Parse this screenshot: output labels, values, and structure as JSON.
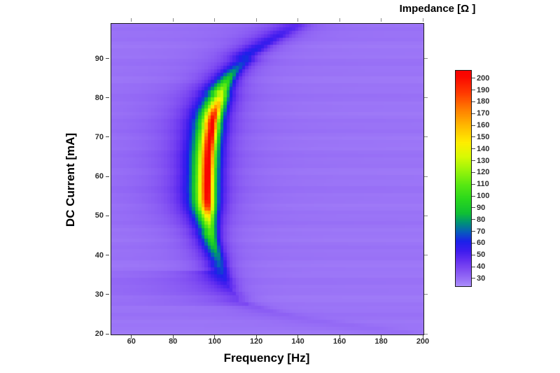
{
  "title": "Impedance [Ω ]",
  "x_axis": {
    "label": "Frequency [Hz]",
    "range": [
      50,
      200
    ],
    "ticks": [
      60,
      80,
      100,
      120,
      140,
      160,
      180,
      200
    ]
  },
  "y_axis": {
    "label": "DC Current [mA]",
    "range": [
      20,
      99
    ],
    "ticks": [
      20,
      30,
      40,
      50,
      60,
      70,
      80,
      90
    ]
  },
  "colorbar": {
    "range": [
      24,
      207
    ],
    "ticks": [
      30,
      40,
      50,
      60,
      70,
      80,
      90,
      100,
      110,
      120,
      130,
      140,
      150,
      160,
      170,
      180,
      190,
      200
    ]
  },
  "chart_data": {
    "type": "heatmap",
    "title": "Impedance [Ω ]",
    "xlabel": "Frequency [Hz]",
    "ylabel": "DC Current [mA]",
    "x_range": [
      50,
      200
    ],
    "y_range": [
      20,
      99
    ],
    "z_label": "Impedance [Ω]",
    "z_range": [
      24,
      207
    ],
    "grid": {
      "cols": 100,
      "rows": 88
    },
    "baseline_impedance": 29,
    "row_noise_amp": 1.1,
    "legend_position": "right-colorbar",
    "colormap_stops": [
      [
        24,
        [
          172,
          142,
          250
        ]
      ],
      [
        30,
        [
          152,
          112,
          246
        ]
      ],
      [
        38,
        [
          128,
          78,
          242
        ]
      ],
      [
        46,
        [
          100,
          48,
          240
        ]
      ],
      [
        54,
        [
          62,
          28,
          238
        ]
      ],
      [
        62,
        [
          28,
          32,
          234
        ]
      ],
      [
        70,
        [
          8,
          92,
          188
        ]
      ],
      [
        78,
        [
          0,
          146,
          118
        ]
      ],
      [
        86,
        [
          16,
          192,
          52
        ]
      ],
      [
        98,
        [
          42,
          216,
          28
        ]
      ],
      [
        110,
        [
          88,
          232,
          18
        ]
      ],
      [
        122,
        [
          152,
          244,
          10
        ]
      ],
      [
        134,
        [
          216,
          250,
          4
        ]
      ],
      [
        146,
        [
          255,
          238,
          0
        ]
      ],
      [
        160,
        [
          255,
          186,
          0
        ]
      ],
      [
        174,
        [
          255,
          126,
          0
        ]
      ],
      [
        188,
        [
          255,
          58,
          0
        ]
      ],
      [
        202,
        [
          250,
          8,
          0
        ]
      ],
      [
        212,
        [
          246,
          0,
          0
        ]
      ]
    ],
    "rows_format": [
      "dc_current_mA",
      "resonance_freq_hz",
      "peak_impedance_ohm",
      "halfwidth_hz",
      "left_shoulder_ohm"
    ],
    "resonance_rows": [
      [
        20,
        190,
        30.5,
        9
      ],
      [
        21,
        176,
        31,
        9
      ],
      [
        22,
        164,
        31.5,
        9
      ],
      [
        23,
        152,
        32,
        8
      ],
      [
        24,
        141,
        32.5,
        7
      ],
      [
        25,
        133,
        33.5,
        6
      ],
      [
        26,
        126,
        34.5,
        5.5
      ],
      [
        27,
        120.5,
        35.5,
        5
      ],
      [
        28,
        115.8,
        36.5,
        4.5,
        3
      ],
      [
        29,
        112.1,
        38,
        4.2,
        4
      ],
      [
        30,
        110.3,
        40,
        4,
        5
      ],
      [
        31,
        108.1,
        43,
        3.8,
        5
      ],
      [
        32,
        107.4,
        47,
        3.6,
        5
      ],
      [
        33,
        106,
        51,
        3.5,
        4
      ],
      [
        34,
        105.4,
        55,
        3.5,
        4
      ],
      [
        35,
        104.3,
        59,
        3.4,
        3
      ],
      [
        36,
        103.6,
        63,
        3.3,
        3
      ],
      [
        37,
        103.1,
        67,
        3.2
      ],
      [
        38,
        102.2,
        71,
        3.1
      ],
      [
        39,
        101.6,
        75,
        3
      ],
      [
        40,
        101,
        79,
        3
      ],
      [
        41,
        100.3,
        83,
        2.9
      ],
      [
        42,
        99.8,
        87,
        2.9
      ],
      [
        43,
        99.2,
        92,
        2.9
      ],
      [
        44,
        98.8,
        97,
        2.8
      ],
      [
        45,
        98.3,
        103,
        2.8
      ],
      [
        46,
        98,
        110,
        2.8
      ],
      [
        47,
        97.6,
        118,
        2.8
      ],
      [
        48,
        97.4,
        128,
        2.8
      ],
      [
        49,
        97.2,
        138,
        2.8
      ],
      [
        50,
        97,
        150,
        2.8
      ],
      [
        51,
        96.9,
        165,
        2.8
      ],
      [
        52,
        96.8,
        185,
        2.8
      ],
      [
        53,
        96.7,
        196,
        2.8
      ],
      [
        54,
        96.7,
        203,
        2.8
      ],
      [
        55,
        96.6,
        207,
        2.8
      ],
      [
        56,
        96.6,
        209,
        2.8
      ],
      [
        57,
        96.6,
        210,
        2.8
      ],
      [
        58,
        96.6,
        211,
        2.8
      ],
      [
        59,
        96.7,
        211,
        2.8
      ],
      [
        60,
        96.7,
        212,
        2.8
      ],
      [
        61,
        96.8,
        212,
        2.8
      ],
      [
        62,
        96.8,
        212,
        2.8
      ],
      [
        63,
        96.9,
        212,
        2.8
      ],
      [
        64,
        97,
        212,
        2.8
      ],
      [
        65,
        97.1,
        211,
        2.8
      ],
      [
        66,
        97.2,
        211,
        2.8
      ],
      [
        67,
        97.4,
        211,
        2.8
      ],
      [
        68,
        97.5,
        210,
        2.8
      ],
      [
        69,
        97.7,
        210,
        2.8
      ],
      [
        70,
        97.9,
        209,
        2.8
      ],
      [
        71,
        98.1,
        208,
        2.8
      ],
      [
        72,
        98.4,
        207,
        2.8
      ],
      [
        73,
        98.7,
        206,
        2.8
      ],
      [
        74,
        99,
        204,
        2.8
      ],
      [
        75,
        99.4,
        200,
        2.8
      ],
      [
        76,
        99.8,
        192,
        2.9
      ],
      [
        77,
        100.3,
        182,
        3
      ],
      [
        78,
        100.9,
        170,
        3
      ],
      [
        79,
        101.5,
        158,
        3.1
      ],
      [
        80,
        102.2,
        145,
        3.2
      ],
      [
        81,
        103,
        132,
        3.2
      ],
      [
        82,
        103.8,
        120,
        3.2
      ],
      [
        83,
        104.7,
        110,
        3.3
      ],
      [
        84,
        105.7,
        100,
        3.3
      ],
      [
        85,
        106.8,
        92,
        3.4
      ],
      [
        86,
        108,
        85,
        3.5
      ],
      [
        87,
        109.4,
        78,
        3.6
      ],
      [
        88,
        111,
        72,
        3.8
      ],
      [
        89,
        112.8,
        67,
        4
      ],
      [
        90,
        114.8,
        64,
        4.2
      ],
      [
        91,
        116.6,
        62,
        4.4
      ],
      [
        92,
        119.5,
        60,
        4.6
      ],
      [
        93,
        121.6,
        58,
        4.8
      ],
      [
        94,
        124.9,
        56,
        5
      ],
      [
        95,
        127.1,
        55,
        5.2
      ],
      [
        96,
        130.6,
        54,
        5.4
      ],
      [
        97,
        132.8,
        52,
        5.6
      ],
      [
        98,
        136.1,
        50,
        5.8
      ],
      [
        99,
        138.4,
        48,
        6
      ]
    ]
  }
}
